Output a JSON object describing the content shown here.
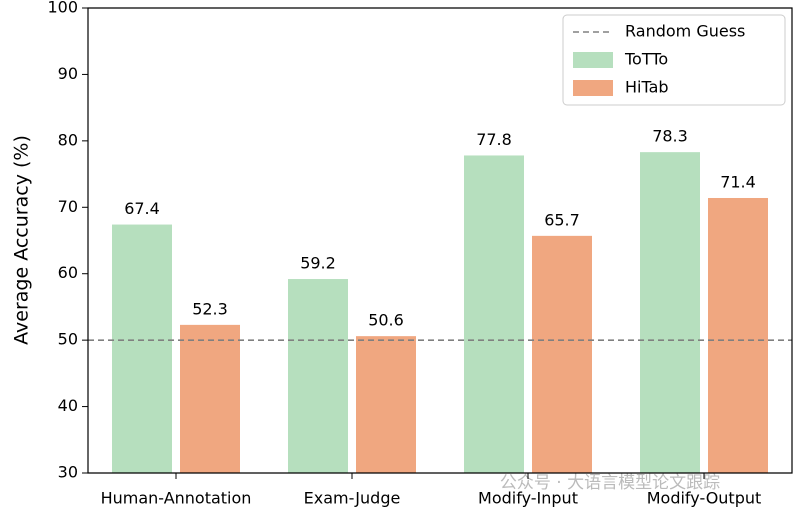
{
  "chart_data": {
    "type": "bar",
    "ylabel": "Average Accuracy (%)",
    "categories": [
      "Human-Annotation",
      "Exam-Judge",
      "Modify-Input",
      "Modify-Output"
    ],
    "series": [
      {
        "name": "ToTTo",
        "color": "#b6dfbe",
        "values": [
          67.4,
          59.2,
          77.8,
          78.3
        ]
      },
      {
        "name": "HiTab",
        "color": "#f0a780",
        "values": [
          52.3,
          50.6,
          65.7,
          71.4
        ]
      }
    ],
    "reference_line": {
      "name": "Random Guess",
      "value": 50,
      "color": "#808080"
    },
    "ylim": [
      30,
      100
    ],
    "yticks": [
      30,
      40,
      50,
      60,
      70,
      80,
      90,
      100
    ],
    "legend": "upper right"
  },
  "watermark": "公众号 · 大语言模型论文跟踪"
}
